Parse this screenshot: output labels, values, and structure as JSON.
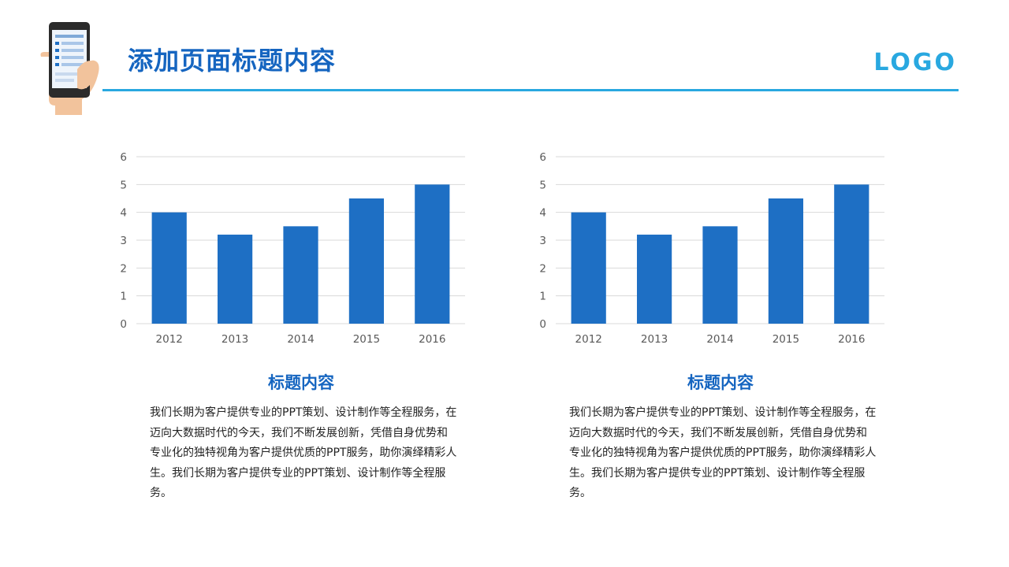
{
  "page": {
    "title": "添加页面标题内容",
    "logo": "LOGO",
    "accent_color": "#29a8e0",
    "title_color": "#1565c0",
    "header_icon": "phone-in-hand-icon"
  },
  "panels": [
    {
      "title": "标题内容",
      "body": "我们长期为客户提供专业的PPT策划、设计制作等全程服务，在迈向大数据时代的今天，我们不断发展创新，凭借自身优势和专业化的独特视角为客户提供优质的PPT服务，助你演绎精彩人生。我们长期为客户提供专业的PPT策划、设计制作等全程服务。"
    },
    {
      "title": "标题内容",
      "body": "我们长期为客户提供专业的PPT策划、设计制作等全程服务，在迈向大数据时代的今天，我们不断发展创新，凭借自身优势和专业化的独特视角为客户提供优质的PPT服务，助你演绎精彩人生。我们长期为客户提供专业的PPT策划、设计制作等全程服务。"
    }
  ],
  "chart_data": [
    {
      "type": "bar",
      "categories": [
        "2012",
        "2013",
        "2014",
        "2015",
        "2016"
      ],
      "values": [
        4,
        3.2,
        3.5,
        4.5,
        5
      ],
      "ylim": [
        0,
        6
      ],
      "yticks": [
        0,
        1,
        2,
        3,
        4,
        5,
        6
      ],
      "grid": true,
      "bar_color": "#1e6fc4",
      "grid_color": "#d9d9d9",
      "title": "",
      "xlabel": "",
      "ylabel": ""
    },
    {
      "type": "bar",
      "categories": [
        "2012",
        "2013",
        "2014",
        "2015",
        "2016"
      ],
      "values": [
        4,
        3.2,
        3.5,
        4.5,
        5
      ],
      "ylim": [
        0,
        6
      ],
      "yticks": [
        0,
        1,
        2,
        3,
        4,
        5,
        6
      ],
      "grid": true,
      "bar_color": "#1e6fc4",
      "grid_color": "#d9d9d9",
      "title": "",
      "xlabel": "",
      "ylabel": ""
    }
  ]
}
